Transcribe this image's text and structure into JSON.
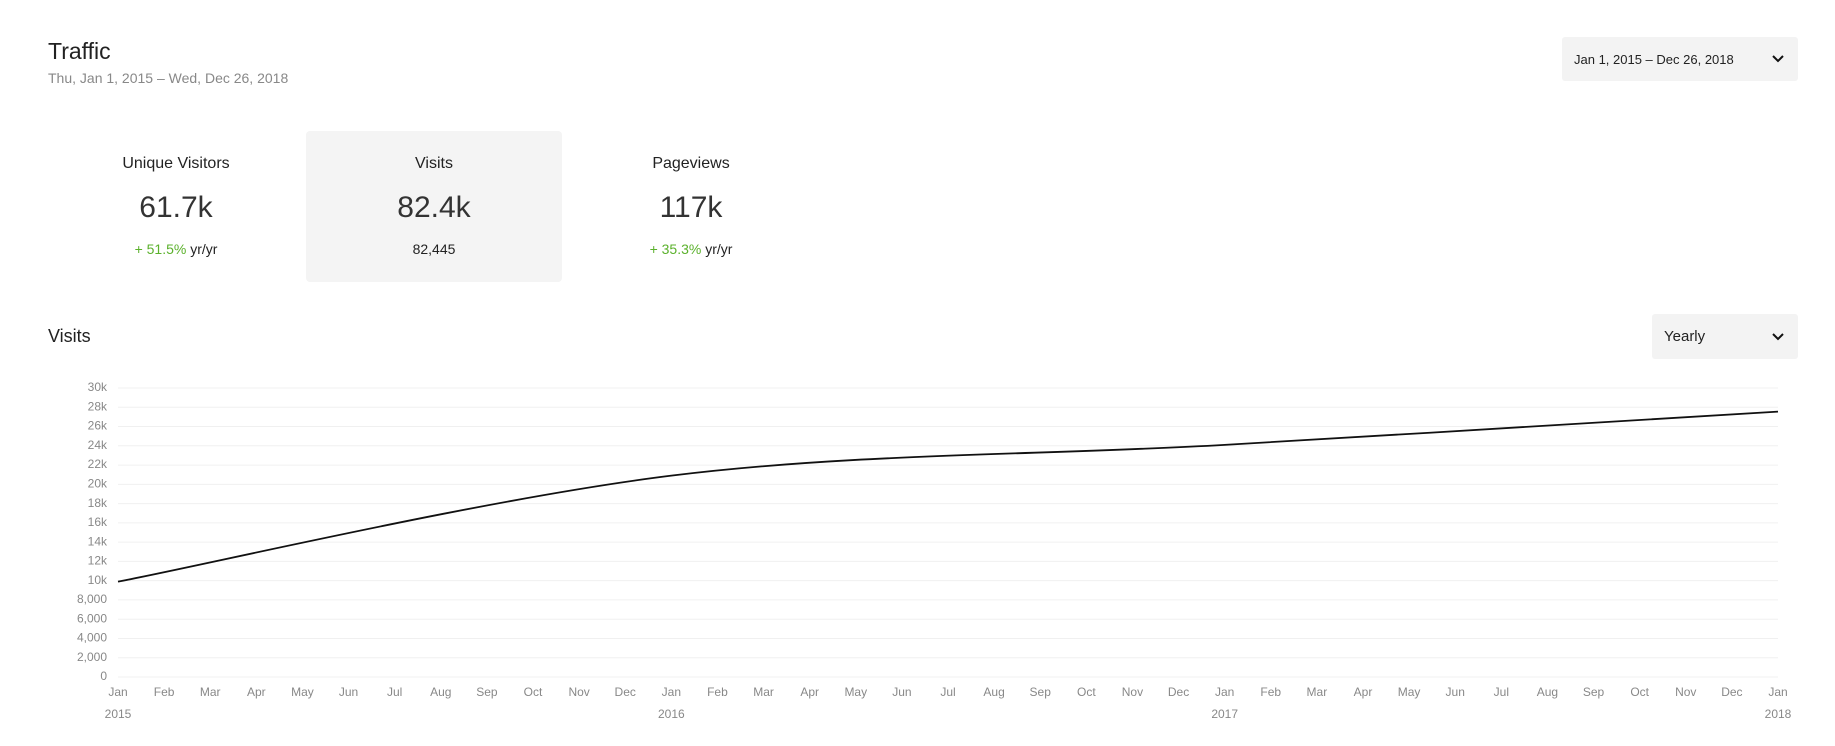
{
  "header": {
    "title": "Traffic",
    "subtitle": "Thu, Jan 1, 2015 – Wed, Dec 26, 2018",
    "date_range": "Jan 1, 2015 – Dec 26, 2018"
  },
  "stats": [
    {
      "label": "Unique Visitors",
      "value": "61.7k",
      "change": "+ 51.5%",
      "suffix": "yr/yr"
    },
    {
      "label": "Visits",
      "value": "82.4k",
      "detail": "82,445"
    },
    {
      "label": "Pageviews",
      "value": "117k",
      "change": "+ 35.3%",
      "suffix": "yr/yr"
    }
  ],
  "section": {
    "title": "Visits",
    "interval": "Yearly"
  },
  "chart_data": {
    "type": "line",
    "x": [
      "2015-01",
      "2016-01",
      "2017-01",
      "2018-01"
    ],
    "series": [
      {
        "name": "Visits",
        "color": "#111111",
        "values": [
          9900,
          20900,
          24100,
          27545
        ]
      }
    ],
    "xlim": [
      "2015-01",
      "2018-01"
    ],
    "xticks": [
      {
        "value": "2015-01",
        "label": "Jan"
      },
      {
        "value": "2015-02",
        "label": "Feb"
      },
      {
        "value": "2015-03",
        "label": "Mar"
      },
      {
        "value": "2015-04",
        "label": "Apr"
      },
      {
        "value": "2015-05",
        "label": "May"
      },
      {
        "value": "2015-06",
        "label": "Jun"
      },
      {
        "value": "2015-07",
        "label": "Jul"
      },
      {
        "value": "2015-08",
        "label": "Aug"
      },
      {
        "value": "2015-09",
        "label": "Sep"
      },
      {
        "value": "2015-10",
        "label": "Oct"
      },
      {
        "value": "2015-11",
        "label": "Nov"
      },
      {
        "value": "2015-12",
        "label": "Dec"
      },
      {
        "value": "2016-01",
        "label": "Jan"
      },
      {
        "value": "2016-02",
        "label": "Feb"
      },
      {
        "value": "2016-03",
        "label": "Mar"
      },
      {
        "value": "2016-04",
        "label": "Apr"
      },
      {
        "value": "2016-05",
        "label": "May"
      },
      {
        "value": "2016-06",
        "label": "Jun"
      },
      {
        "value": "2016-07",
        "label": "Jul"
      },
      {
        "value": "2016-08",
        "label": "Aug"
      },
      {
        "value": "2016-09",
        "label": "Sep"
      },
      {
        "value": "2016-10",
        "label": "Oct"
      },
      {
        "value": "2016-11",
        "label": "Nov"
      },
      {
        "value": "2016-12",
        "label": "Dec"
      },
      {
        "value": "2017-01",
        "label": "Jan"
      },
      {
        "value": "2017-02",
        "label": "Feb"
      },
      {
        "value": "2017-03",
        "label": "Mar"
      },
      {
        "value": "2017-04",
        "label": "Apr"
      },
      {
        "value": "2017-05",
        "label": "May"
      },
      {
        "value": "2017-06",
        "label": "Jun"
      },
      {
        "value": "2017-07",
        "label": "Jul"
      },
      {
        "value": "2017-08",
        "label": "Aug"
      },
      {
        "value": "2017-09",
        "label": "Sep"
      },
      {
        "value": "2017-10",
        "label": "Oct"
      },
      {
        "value": "2017-11",
        "label": "Nov"
      },
      {
        "value": "2017-12",
        "label": "Dec"
      },
      {
        "value": "2018-01",
        "label": "Jan"
      }
    ],
    "xticks_years": [
      {
        "value": "2015-01",
        "label": "2015"
      },
      {
        "value": "2016-01",
        "label": "2016"
      },
      {
        "value": "2017-01",
        "label": "2017"
      },
      {
        "value": "2018-01",
        "label": "2018"
      }
    ],
    "ylim": [
      0,
      30000
    ],
    "yticks": [
      0,
      {
        "value": 2000,
        "label": "2,000"
      },
      {
        "value": 4000,
        "label": "4,000"
      },
      {
        "value": 6000,
        "label": "6,000"
      },
      {
        "value": 8000,
        "label": "8,000"
      },
      {
        "value": 10000,
        "label": "10k"
      },
      {
        "value": 12000,
        "label": "12k"
      },
      {
        "value": 14000,
        "label": "14k"
      },
      {
        "value": 16000,
        "label": "16k"
      },
      {
        "value": 18000,
        "label": "18k"
      },
      {
        "value": 20000,
        "label": "20k"
      },
      {
        "value": 22000,
        "label": "22k"
      },
      {
        "value": 24000,
        "label": "24k"
      },
      {
        "value": 26000,
        "label": "26k"
      },
      {
        "value": 28000,
        "label": "28k"
      },
      {
        "value": 30000,
        "label": "30k"
      }
    ],
    "grid": true
  }
}
